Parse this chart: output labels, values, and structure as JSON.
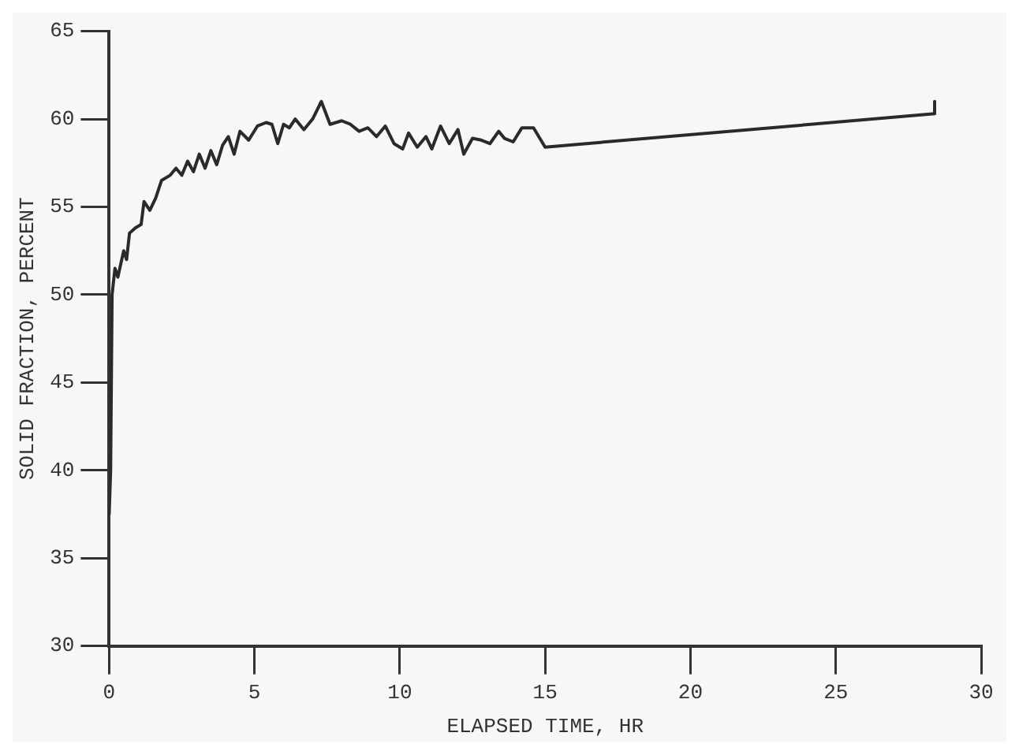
{
  "chart_data": {
    "type": "line",
    "xlabel": "ELAPSED TIME, HR",
    "ylabel": "SOLID FRACTION, PERCENT",
    "xlim": [
      0,
      30
    ],
    "xticks": [
      0,
      5,
      10,
      15,
      20,
      25,
      30
    ],
    "ylim": [
      30,
      65
    ],
    "yticks": [
      30,
      35,
      40,
      45,
      50,
      55,
      60,
      65
    ],
    "grid": false,
    "legend": false,
    "marker": "none",
    "series": [
      {
        "color": "#2a2a2a",
        "x": [
          0,
          0.05,
          0.1,
          0.2,
          0.3,
          0.5,
          0.6,
          0.7,
          0.9,
          1.1,
          1.2,
          1.4,
          1.6,
          1.8,
          2.1,
          2.3,
          2.5,
          2.7,
          2.9,
          3.1,
          3.3,
          3.5,
          3.7,
          3.9,
          4.1,
          4.3,
          4.5,
          4.8,
          5.1,
          5.4,
          5.6,
          5.8,
          6.0,
          6.2,
          6.4,
          6.7,
          7.0,
          7.3,
          7.6,
          8.0,
          8.3,
          8.6,
          8.9,
          9.2,
          9.5,
          9.8,
          10.1,
          10.3,
          10.6,
          10.9,
          11.1,
          11.4,
          11.7,
          12.0,
          12.2,
          12.5,
          12.8,
          13.1,
          13.4,
          13.6,
          13.9,
          14.2,
          14.6,
          15.0,
          28.4,
          28.4
        ],
        "values": [
          37.5,
          40,
          50,
          51.5,
          51,
          52.5,
          52,
          53.5,
          53.8,
          54,
          55.3,
          54.8,
          55.5,
          56.5,
          56.8,
          57.2,
          56.8,
          57.6,
          57,
          58,
          57.2,
          58.2,
          57.4,
          58.5,
          59,
          58,
          59.3,
          58.8,
          59.6,
          59.8,
          59.7,
          58.6,
          59.7,
          59.5,
          60,
          59.4,
          60,
          61,
          59.7,
          59.9,
          59.7,
          59.3,
          59.5,
          59,
          59.6,
          58.6,
          58.3,
          59.2,
          58.4,
          59,
          58.3,
          59.6,
          58.6,
          59.4,
          58,
          58.9,
          58.8,
          58.6,
          59.3,
          58.9,
          58.7,
          59.5,
          59.5,
          58.4,
          60.3,
          61
        ]
      }
    ]
  }
}
